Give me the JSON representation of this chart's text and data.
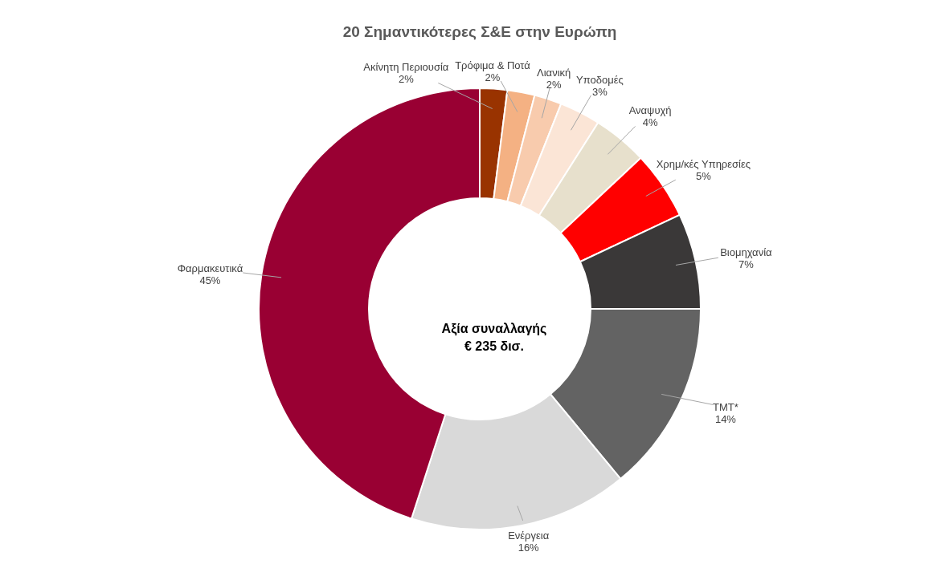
{
  "chart_data": {
    "type": "donut",
    "title": "20 Σημαντικότερες Σ&Ε στην Ευρώπη",
    "categories": [
      "Ακίνητη Περιουσία",
      "Τρόφιμα & Ποτά",
      "Λιανική",
      "Υποδομές",
      "Αναψυχή",
      "Χρημ/κές Υπηρεσίες",
      "Βιομηχανία",
      "TMT*",
      "Ενέργεια",
      "Φαρμακευτικά"
    ],
    "values": [
      2,
      2,
      2,
      3,
      4,
      5,
      7,
      14,
      16,
      45
    ],
    "value_labels": [
      "2%",
      "2%",
      "2%",
      "3%",
      "4%",
      "5%",
      "7%",
      "14%",
      "16%",
      "45%"
    ],
    "colors": [
      "#993300",
      "#f4b183",
      "#f8cbad",
      "#fbe5d6",
      "#e7e0cc",
      "#ff0000",
      "#3a3838",
      "#636363",
      "#d9d9d9",
      "#990033"
    ],
    "annotations": [
      "Αξία συναλλαγής\n€ 235 δισ."
    ],
    "legend": false
  }
}
